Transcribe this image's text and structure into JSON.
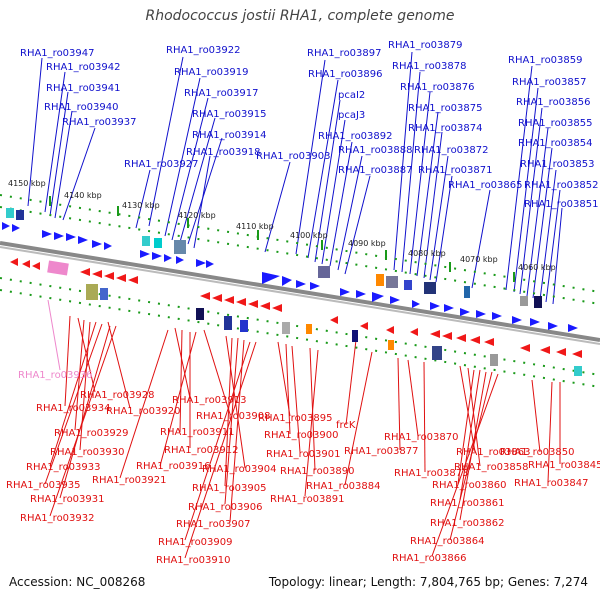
{
  "title": "Rhodococcus jostii RHA1, complete genome",
  "footer": {
    "accession": "Accession: NC_008268",
    "topology": "Topology: linear; Length: 7,804,765 bp; Genes: 7,274"
  },
  "colors": {
    "upper_genes": "#1010cc",
    "lower_genes": "#e01010",
    "highlight_gene": "#ee88cc",
    "ticks": "#1a9a1a"
  },
  "scale_labels": [
    "4150 kbp",
    "4140 kbp",
    "4130 kbp",
    "4120 kbp",
    "4110 kbp",
    "4100 kbp",
    "4090 kbp",
    "4080 kbp",
    "4070 kbp",
    "4060 kbp"
  ],
  "upper_labels": [
    "RHA1_ro03947",
    "RHA1_ro03942",
    "RHA1_ro03941",
    "RHA1_ro03940",
    "RHA1_ro03937",
    "RHA1_ro03922",
    "RHA1_ro03919",
    "RHA1_ro03917",
    "RHA1_ro03915",
    "RHA1_ro03914",
    "RHA1_ro03918",
    "RHA1_ro03927",
    "RHA1_ro03897",
    "RHA1_ro03896",
    "pcaI2",
    "pcaJ3",
    "RHA1_ro03892",
    "RHA1_ro03888",
    "RHA1_ro03887",
    "RHA1_ro03903",
    "RHA1_ro03879",
    "RHA1_ro03878",
    "RHA1_ro03876",
    "RHA1_ro03875",
    "RHA1_ro03874",
    "RHA1_ro03872",
    "RHA1_ro03871",
    "RHA1_ro03865",
    "RHA1_ro03859",
    "RHA1_ro03857",
    "RHA1_ro03856",
    "RHA1_ro03855",
    "RHA1_ro03854",
    "RHA1_ro03853",
    "RHA1_ro03852",
    "RHA1_ro03851"
  ],
  "lower_labels": [
    "RHA1_ro03936",
    "RHA1_ro03928",
    "RHA1_ro03934",
    "RHA1_ro03920",
    "RHA1_ro03929",
    "RHA1_ro03930",
    "RHA1_ro03933",
    "RHA1_ro03935",
    "RHA1_ro03931",
    "RHA1_ro03932",
    "RHA1_ro03913",
    "RHA1_ro03908",
    "RHA1_ro03911",
    "RHA1_ro03912",
    "RHA1_ro03916",
    "RHA1_ro03921",
    "RHA1_ro03904",
    "RHA1_ro03905",
    "RHA1_ro03906",
    "RHA1_ro03907",
    "RHA1_ro03909",
    "RHA1_ro03910",
    "RHA1_ro03895",
    "RHA1_ro03900",
    "RHA1_ro03901",
    "RHA1_ro03890",
    "RHA1_ro03891",
    "frcK",
    "RHA1_ro03884",
    "RHA1_ro03870",
    "RHA1_ro03877",
    "RHA1_ro03873",
    "RHA1_ro03863",
    "RHA1_ro03858",
    "RHA1_ro03860",
    "RHA1_ro03861",
    "RHA1_ro03862",
    "RHA1_ro03864",
    "RHA1_ro03866",
    "RHA1_ro03850",
    "RHA1_ro03845",
    "RHA1_ro03847"
  ]
}
